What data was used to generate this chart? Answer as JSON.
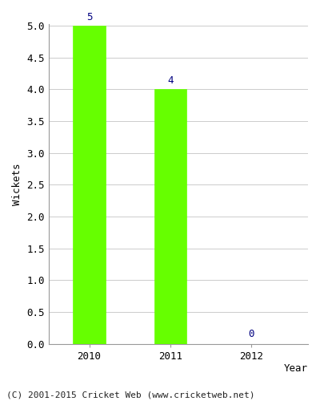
{
  "categories": [
    "2010",
    "2011",
    "2012"
  ],
  "values": [
    5,
    4,
    0
  ],
  "bar_color": "#66ff00",
  "bar_edge_color": "#66ff00",
  "xlabel": "Year",
  "ylabel": "Wickets",
  "ylim": [
    0,
    5.0
  ],
  "yticks": [
    0.0,
    0.5,
    1.0,
    1.5,
    2.0,
    2.5,
    3.0,
    3.5,
    4.0,
    4.5,
    5.0
  ],
  "annotation_color": "#000080",
  "annotation_fontsize": 9,
  "axis_label_fontsize": 9,
  "tick_fontsize": 9,
  "footer_text": "(C) 2001-2015 Cricket Web (www.cricketweb.net)",
  "footer_fontsize": 8,
  "background_color": "#ffffff",
  "grid_color": "#cccccc",
  "bar_width": 0.4
}
